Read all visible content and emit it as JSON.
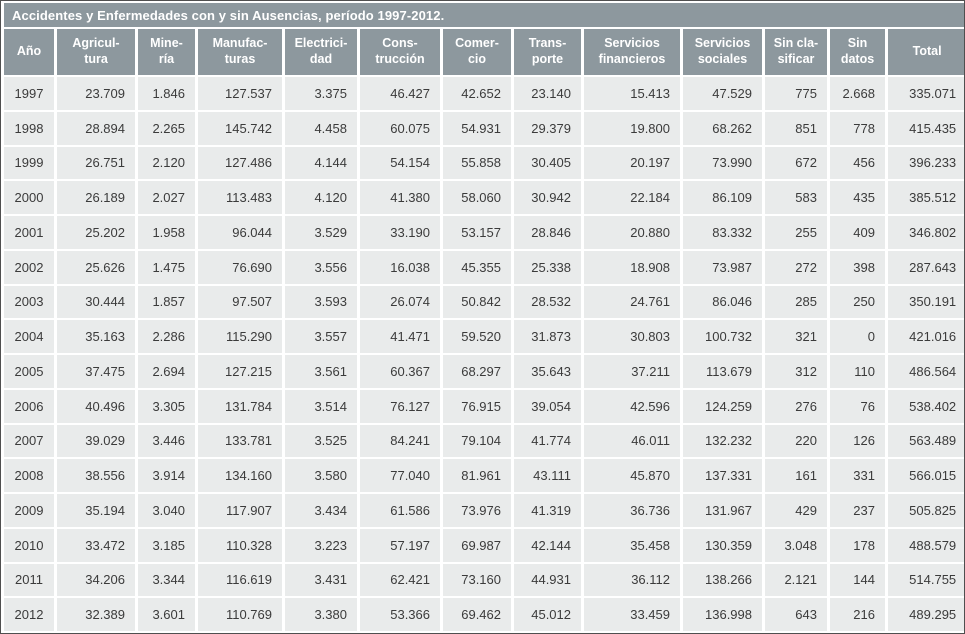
{
  "colors": {
    "header_bg": "#8d989e",
    "row_bg": "#e9ebeb",
    "header_text": "#ffffff",
    "cell_text": "#3b3b3b",
    "gap": "#ffffff"
  },
  "chart_data": {
    "type": "table",
    "title": "Accidentes y Enfermedades con y sin Ausencias, período 1997-2012.",
    "columns": [
      "Año",
      "Agricul-\ntura",
      "Mine-\nría",
      "Manufac-\nturas",
      "Electrici-\ndad",
      "Cons-\ntrucción",
      "Comer-\ncio",
      "Trans-\nporte",
      "Servicios\nfinancieros",
      "Servicios\nsociales",
      "Sin cla-\nsificar",
      "Sin\ndatos",
      "Total"
    ],
    "rows": [
      [
        "1997",
        "23.709",
        "1.846",
        "127.537",
        "3.375",
        "46.427",
        "42.652",
        "23.140",
        "15.413",
        "47.529",
        "775",
        "2.668",
        "335.071"
      ],
      [
        "1998",
        "28.894",
        "2.265",
        "145.742",
        "4.458",
        "60.075",
        "54.931",
        "29.379",
        "19.800",
        "68.262",
        "851",
        "778",
        "415.435"
      ],
      [
        "1999",
        "26.751",
        "2.120",
        "127.486",
        "4.144",
        "54.154",
        "55.858",
        "30.405",
        "20.197",
        "73.990",
        "672",
        "456",
        "396.233"
      ],
      [
        "2000",
        "26.189",
        "2.027",
        "113.483",
        "4.120",
        "41.380",
        "58.060",
        "30.942",
        "22.184",
        "86.109",
        "583",
        "435",
        "385.512"
      ],
      [
        "2001",
        "25.202",
        "1.958",
        "96.044",
        "3.529",
        "33.190",
        "53.157",
        "28.846",
        "20.880",
        "83.332",
        "255",
        "409",
        "346.802"
      ],
      [
        "2002",
        "25.626",
        "1.475",
        "76.690",
        "3.556",
        "16.038",
        "45.355",
        "25.338",
        "18.908",
        "73.987",
        "272",
        "398",
        "287.643"
      ],
      [
        "2003",
        "30.444",
        "1.857",
        "97.507",
        "3.593",
        "26.074",
        "50.842",
        "28.532",
        "24.761",
        "86.046",
        "285",
        "250",
        "350.191"
      ],
      [
        "2004",
        "35.163",
        "2.286",
        "115.290",
        "3.557",
        "41.471",
        "59.520",
        "31.873",
        "30.803",
        "100.732",
        "321",
        "0",
        "421.016"
      ],
      [
        "2005",
        "37.475",
        "2.694",
        "127.215",
        "3.561",
        "60.367",
        "68.297",
        "35.643",
        "37.211",
        "113.679",
        "312",
        "110",
        "486.564"
      ],
      [
        "2006",
        "40.496",
        "3.305",
        "131.784",
        "3.514",
        "76.127",
        "76.915",
        "39.054",
        "42.596",
        "124.259",
        "276",
        "76",
        "538.402"
      ],
      [
        "2007",
        "39.029",
        "3.446",
        "133.781",
        "3.525",
        "84.241",
        "79.104",
        "41.774",
        "46.011",
        "132.232",
        "220",
        "126",
        "563.489"
      ],
      [
        "2008",
        "38.556",
        "3.914",
        "134.160",
        "3.580",
        "77.040",
        "81.961",
        "43.111",
        "45.870",
        "137.331",
        "161",
        "331",
        "566.015"
      ],
      [
        "2009",
        "35.194",
        "3.040",
        "117.907",
        "3.434",
        "61.586",
        "73.976",
        "41.319",
        "36.736",
        "131.967",
        "429",
        "237",
        "505.825"
      ],
      [
        "2010",
        "33.472",
        "3.185",
        "110.328",
        "3.223",
        "57.197",
        "69.987",
        "42.144",
        "35.458",
        "130.359",
        "3.048",
        "178",
        "488.579"
      ],
      [
        "2011",
        "34.206",
        "3.344",
        "116.619",
        "3.431",
        "62.421",
        "73.160",
        "44.931",
        "36.112",
        "138.266",
        "2.121",
        "144",
        "514.755"
      ],
      [
        "2012",
        "32.389",
        "3.601",
        "110.769",
        "3.380",
        "53.366",
        "69.462",
        "45.012",
        "33.459",
        "136.998",
        "643",
        "216",
        "489.295"
      ]
    ]
  }
}
